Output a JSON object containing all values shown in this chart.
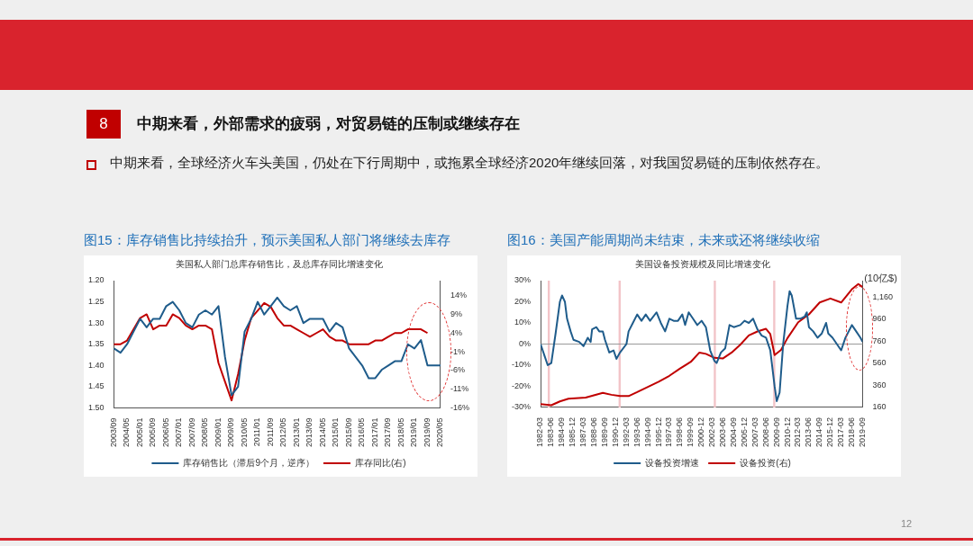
{
  "chart_data": [
    {
      "type": "other",
      "title": "中期来看，外部需求的疲弱，对贸易链的压制或继续存在",
      "subtitle": "中期来看，全球经济火车头美国，仍处在下行周期中，或拖累全球经济2020年继续回落，对我国贸易链的压制依然存在。",
      "annotations": [
        "8",
        "12"
      ]
    },
    {
      "type": "line",
      "title": "图15：库存销售比持续抬升，预示美国私人部门将继续去库存",
      "subtitle": "美国私人部门总库存销售比，及总库存同比增速变化",
      "legend": "bottom",
      "categories": [
        "2003/09",
        null,
        "2004/05",
        null,
        "2005/01",
        null,
        "2005/09",
        null,
        "2006/05",
        null,
        "2007/01",
        null,
        "2007/09",
        null,
        "2008/05",
        null,
        "2009/01",
        null,
        "2009/09",
        null,
        "2010/05",
        null,
        "2011/01",
        null,
        "2011/09",
        null,
        "2012/05",
        null,
        "2013/01",
        null,
        "2013/09",
        null,
        "2014/05",
        null,
        "2015/01",
        null,
        "2015/09",
        null,
        "2016/05",
        null,
        "2017/01",
        null,
        "2017/09",
        null,
        "2018/05",
        null,
        "2019/01",
        null,
        "2019/09",
        null,
        "2020/05"
      ],
      "ylim": [
        1.5,
        1.2
      ],
      "yticks": [
        {
          "value": 1.2,
          "label": "1.20"
        },
        {
          "value": 1.25,
          "label": "1.25"
        },
        {
          "value": 1.3,
          "label": "1.30"
        },
        {
          "value": 1.35,
          "label": "1.35"
        },
        {
          "value": 1.4,
          "label": "1.40"
        },
        {
          "value": 1.45,
          "label": "1.45"
        },
        {
          "value": 1.5,
          "label": "1.50"
        }
      ],
      "y2lim": [
        -16,
        18
      ],
      "y2ticks": [
        {
          "value": -16,
          "label": "-16%"
        },
        {
          "value": -11,
          "label": "-11%"
        },
        {
          "value": -6,
          "label": "-6%"
        },
        {
          "value": -1,
          "label": "-1%"
        },
        {
          "value": 4,
          "label": "4%"
        },
        {
          "value": 9,
          "label": "9%"
        },
        {
          "value": 14,
          "label": "14%"
        }
      ],
      "series": [
        {
          "name": "库存销售比（滞后9个月，逆序）",
          "color": "#1f5c8b",
          "values": [
            1.36,
            1.37,
            1.35,
            1.32,
            1.29,
            1.31,
            1.29,
            1.29,
            1.26,
            1.25,
            1.27,
            1.3,
            1.31,
            1.28,
            1.27,
            1.28,
            1.26,
            1.38,
            1.47,
            1.45,
            1.32,
            1.29,
            1.25,
            1.28,
            1.26,
            1.24,
            1.26,
            1.27,
            1.26,
            1.3,
            1.29,
            1.29,
            1.29,
            1.32,
            1.3,
            1.31,
            1.36,
            1.38,
            1.4,
            1.43,
            1.43,
            1.41,
            1.4,
            1.39,
            1.39,
            1.35,
            1.36,
            1.34,
            1.4,
            1.4,
            1.4
          ]
        },
        {
          "name": "库存同比(右)",
          "color": "#c00000",
          "axis": "y2",
          "values": [
            1,
            1,
            2,
            5,
            8,
            9,
            5,
            6,
            6,
            9,
            8,
            6,
            5,
            6,
            6,
            5,
            -4,
            -9,
            -14,
            -7,
            2,
            8,
            10,
            12,
            11,
            8,
            6,
            6,
            5,
            4,
            3,
            4,
            5,
            3,
            2,
            2,
            1,
            1,
            1,
            1,
            2,
            2,
            3,
            4,
            4,
            5,
            5,
            5,
            4,
            null,
            null
          ]
        }
      ]
    },
    {
      "type": "line",
      "title": "图16：美国产能周期尚未结束，未来或还将继续收缩",
      "subtitle": "美国设备投资规模及同比增速变化",
      "y2label": "(10亿$)",
      "legend": "bottom",
      "xlim": [
        "1982-03",
        "2019-09"
      ],
      "xticks": [
        "1982-03",
        "1983-06",
        "1984-09",
        "1985-12",
        "1987-03",
        "1988-06",
        "1989-09",
        "1990-12",
        "1992-03",
        "1993-06",
        "1994-09",
        "1995-12",
        "1997-03",
        "1998-06",
        "1999-09",
        "2000-12",
        "2002-03",
        "2003-06",
        "2004-09",
        "2005-12",
        "2007-03",
        "2008-06",
        "2009-09",
        "2010-12",
        "2012-03",
        "2013-06",
        "2014-09",
        "2015-12",
        "2017-03",
        "2018-06",
        "2019-09"
      ],
      "ylim": [
        -30,
        30
      ],
      "yticks": [
        {
          "value": -30,
          "label": "-30%"
        },
        {
          "value": -20,
          "label": "-20%"
        },
        {
          "value": -10,
          "label": "-10%"
        },
        {
          "value": 0,
          "label": "0%"
        },
        {
          "value": 10,
          "label": "10%"
        },
        {
          "value": 20,
          "label": "20%"
        },
        {
          "value": 30,
          "label": "30%"
        }
      ],
      "y2lim": [
        160,
        1310
      ],
      "y2ticks": [
        160,
        360,
        560,
        760,
        960,
        {
          "value": 1160,
          "label": "1,160"
        }
      ],
      "ref_lines": [
        {
          "axis": "y",
          "value": 0,
          "color": "#999999"
        }
      ],
      "bands": [
        {
          "axis": "x",
          "from": "1983-01",
          "to": "1983-04",
          "color": "#f2c4c8"
        },
        {
          "axis": "x",
          "from": "1991-04",
          "to": "1991-07",
          "color": "#f2c4c8"
        },
        {
          "axis": "x",
          "from": "2002-05",
          "to": "2002-08",
          "color": "#f2c4c8"
        },
        {
          "axis": "x",
          "from": "2009-04",
          "to": "2009-07",
          "color": "#f2c4c8"
        }
      ],
      "series": [
        {
          "name": "设备投资增速",
          "color": "#1f5c8b",
          "x": [
            "1982-03",
            "1982-09",
            "1983-01",
            "1983-06",
            "1983-12",
            "1984-06",
            "1984-09",
            "1985-01",
            "1985-04",
            "1985-09",
            "1986-01",
            "1986-09",
            "1987-03",
            "1987-09",
            "1988-01",
            "1988-03",
            "1988-09",
            "1989-01",
            "1989-06",
            "1989-09",
            "1990-03",
            "1990-09",
            "1991-01",
            "1991-06",
            "1992-03",
            "1992-06",
            "1992-12",
            "1993-06",
            "1993-12",
            "1994-06",
            "1994-12",
            "1995-09",
            "1996-03",
            "1996-09",
            "1997-03",
            "1997-09",
            "1998-03",
            "1998-09",
            "1999-01",
            "1999-06",
            "1999-12",
            "2000-06",
            "2000-12",
            "2001-06",
            "2001-12",
            "2002-06",
            "2002-09",
            "2003-03",
            "2003-09",
            "2004-03",
            "2004-09",
            "2005-06",
            "2005-12",
            "2006-06",
            "2006-12",
            "2007-06",
            "2007-12",
            "2008-06",
            "2008-12",
            "2009-06",
            "2009-09",
            "2010-01",
            "2010-06",
            "2010-12",
            "2011-03",
            "2011-06",
            "2011-12",
            "2012-06",
            "2012-12",
            "2013-03",
            "2013-06",
            "2013-12",
            "2014-06",
            "2014-12",
            "2015-06",
            "2015-09",
            "2016-03",
            "2016-09",
            "2017-03",
            "2017-09",
            "2018-06",
            "2018-12",
            "2019-06",
            "2019-09"
          ],
          "values": [
            0,
            -6,
            -10,
            -9,
            5,
            20,
            23,
            20,
            12,
            6,
            2,
            1,
            -1,
            3,
            1,
            7,
            8,
            6,
            6,
            2,
            -4,
            -3,
            -7,
            -4,
            0,
            6,
            10,
            14,
            11,
            14,
            11,
            15,
            10,
            6,
            12,
            11,
            11,
            14,
            9,
            15,
            12,
            9,
            11,
            8,
            -3,
            -8,
            -9,
            -4,
            -2,
            9,
            8,
            9,
            11,
            10,
            12,
            7,
            4,
            3,
            -3,
            -20,
            -27,
            -23,
            0,
            18,
            25,
            23,
            12,
            12,
            13,
            15,
            8,
            6,
            3,
            5,
            10,
            5,
            3,
            0,
            -3,
            3,
            9,
            6,
            3,
            1
          ]
        },
        {
          "name": "设备投资(右)",
          "color": "#c00000",
          "axis": "y2",
          "x": [
            "1982-03",
            "1983-06",
            "1984-06",
            "1985-06",
            "1987-06",
            "1989-06",
            "1990-06",
            "1991-06",
            "1992-06",
            "1993-06",
            "1994-09",
            "1995-12",
            "1997-03",
            "1998-06",
            "1999-09",
            "2000-09",
            "2001-06",
            "2002-06",
            "2003-06",
            "2004-06",
            "2005-06",
            "2006-06",
            "2007-06",
            "2008-06",
            "2008-12",
            "2009-06",
            "2010-03",
            "2010-12",
            "2012-03",
            "2013-06",
            "2014-09",
            "2015-12",
            "2017-03",
            "2018-06",
            "2019-03",
            "2019-09"
          ],
          "values": [
            191,
            180,
            215,
            239,
            250,
            292,
            275,
            263,
            263,
            299,
            347,
            394,
            447,
            514,
            574,
            658,
            646,
            610,
            605,
            658,
            729,
            813,
            849,
            873,
            825,
            635,
            682,
            789,
            933,
            1004,
            1112,
            1148,
            1112,
            1232,
            1280,
            1251
          ]
        }
      ]
    }
  ]
}
